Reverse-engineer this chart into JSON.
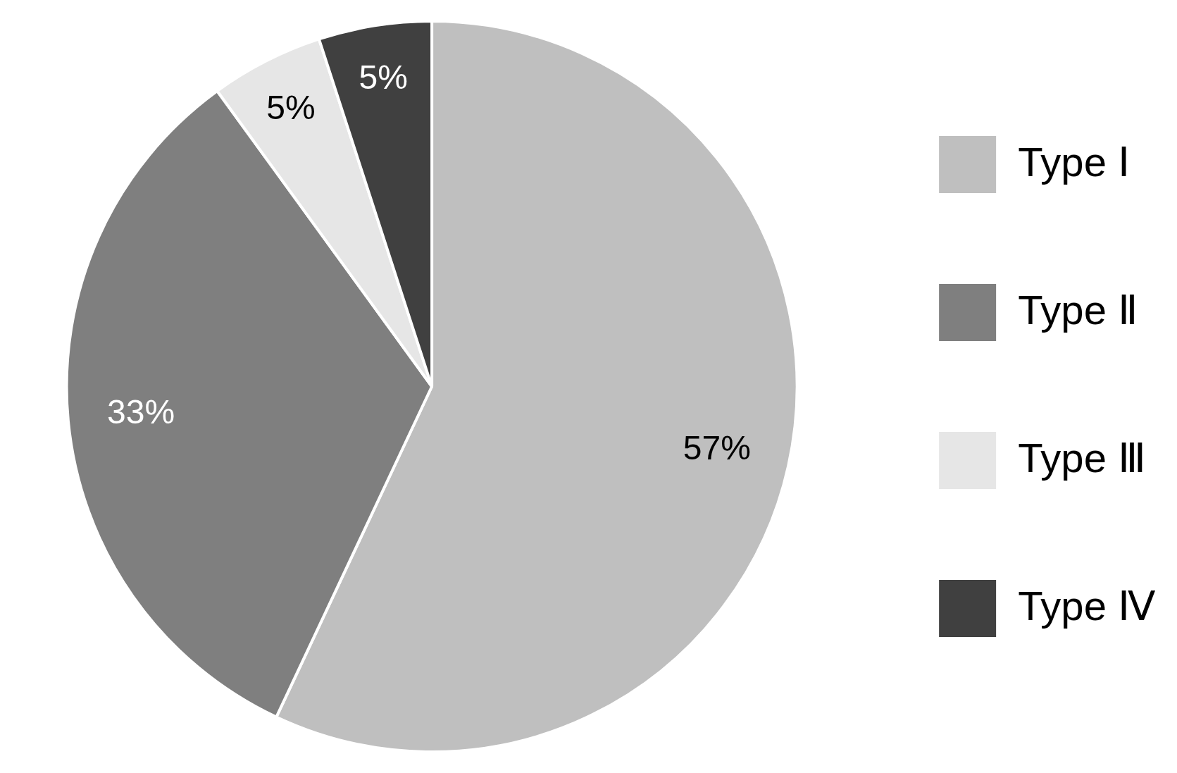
{
  "chart_data": {
    "type": "pie",
    "categories": [
      "Type Ⅰ",
      "Type Ⅱ",
      "Type Ⅲ",
      "Type Ⅳ"
    ],
    "values": [
      57,
      33,
      5,
      5
    ],
    "colors": [
      "#bfbfbf",
      "#7f7f7f",
      "#e6e6e6",
      "#404040"
    ],
    "value_labels": [
      "57%",
      "33%",
      "5%",
      "5%"
    ],
    "legend": "right"
  }
}
